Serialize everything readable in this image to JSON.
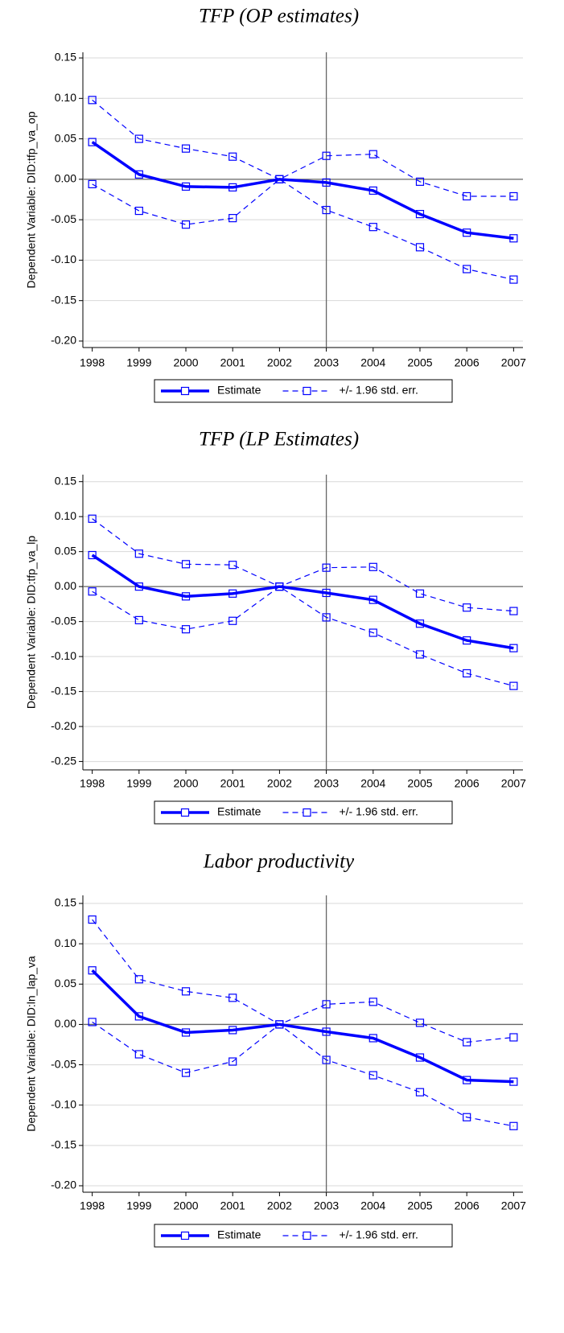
{
  "chart_data": [
    {
      "type": "line",
      "title": "TFP (OP estimates)",
      "y_label": "Dependent Variable: DID:tfp_va_op",
      "x": [
        1998,
        1999,
        2000,
        2001,
        2002,
        2003,
        2004,
        2005,
        2006,
        2007
      ],
      "xlim": [
        1997.8,
        2007.2
      ],
      "xticks": [
        1998,
        1999,
        2000,
        2001,
        2002,
        2003,
        2004,
        2005,
        2006,
        2007
      ],
      "ylim": [
        -0.208,
        0.157
      ],
      "yticks": [
        {
          "value": -0.2,
          "label": "-0.20"
        },
        {
          "value": -0.15,
          "label": "-0.15"
        },
        {
          "value": -0.1,
          "label": "-0.10"
        },
        {
          "value": -0.05,
          "label": "-0.05"
        },
        {
          "value": 0,
          "label": "0.00"
        },
        {
          "value": 0.05,
          "label": "0.05"
        },
        {
          "value": 0.1,
          "label": "0.10"
        },
        {
          "value": 0.15,
          "label": "0.15"
        }
      ],
      "grid": true,
      "hline": 0,
      "vline": 2003,
      "series": [
        {
          "name": "Estimate",
          "color": "#0000ff",
          "style": "solid",
          "values": [
            0.046,
            0.006,
            -0.009,
            -0.01,
            0.0,
            -0.004,
            -0.014,
            -0.043,
            -0.066,
            -0.073
          ]
        },
        {
          "name": "+/- 1.96 std. err.",
          "color": "#0000ff",
          "style": "dashed",
          "upper": [
            0.098,
            0.05,
            0.038,
            0.028,
            0.0,
            0.029,
            0.031,
            -0.003,
            -0.021,
            -0.021
          ],
          "lower": [
            -0.006,
            -0.039,
            -0.056,
            -0.048,
            0.0,
            -0.038,
            -0.059,
            -0.084,
            -0.111,
            -0.124
          ]
        }
      ]
    },
    {
      "type": "line",
      "title": "TFP (LP Estimates)",
      "y_label": "Dependent Variable: DID:tfp_va_lp",
      "x": [
        1998,
        1999,
        2000,
        2001,
        2002,
        2003,
        2004,
        2005,
        2006,
        2007
      ],
      "xlim": [
        1997.8,
        2007.2
      ],
      "xticks": [
        1998,
        1999,
        2000,
        2001,
        2002,
        2003,
        2004,
        2005,
        2006,
        2007
      ],
      "ylim": [
        -0.262,
        0.16
      ],
      "yticks": [
        {
          "value": -0.25,
          "label": "-0.25"
        },
        {
          "value": -0.2,
          "label": "-0.20"
        },
        {
          "value": -0.15,
          "label": "-0.15"
        },
        {
          "value": -0.1,
          "label": "-0.10"
        },
        {
          "value": -0.05,
          "label": "-0.05"
        },
        {
          "value": 0,
          "label": "0.00"
        },
        {
          "value": 0.05,
          "label": "0.05"
        },
        {
          "value": 0.1,
          "label": "0.10"
        },
        {
          "value": 0.15,
          "label": "0.15"
        }
      ],
      "grid": true,
      "hline": 0,
      "vline": 2003,
      "series": [
        {
          "name": "Estimate",
          "color": "#0000ff",
          "style": "solid",
          "values": [
            0.045,
            0.0,
            -0.014,
            -0.01,
            0.0,
            -0.009,
            -0.019,
            -0.053,
            -0.077,
            -0.088
          ]
        },
        {
          "name": "+/- 1.96 std. err.",
          "color": "#0000ff",
          "style": "dashed",
          "upper": [
            0.097,
            0.047,
            0.032,
            0.031,
            0.0,
            0.027,
            0.028,
            -0.01,
            -0.03,
            -0.035
          ],
          "lower": [
            -0.007,
            -0.048,
            -0.061,
            -0.049,
            0.0,
            -0.044,
            -0.066,
            -0.097,
            -0.124,
            -0.142
          ]
        }
      ]
    },
    {
      "type": "line",
      "title": "Labor productivity",
      "y_label": "Dependent Variable: DID:ln_lap_va",
      "x": [
        1998,
        1999,
        2000,
        2001,
        2002,
        2003,
        2004,
        2005,
        2006,
        2007
      ],
      "xlim": [
        1997.8,
        2007.2
      ],
      "xticks": [
        1998,
        1999,
        2000,
        2001,
        2002,
        2003,
        2004,
        2005,
        2006,
        2007
      ],
      "ylim": [
        -0.208,
        0.16
      ],
      "yticks": [
        {
          "value": -0.2,
          "label": "-0.20"
        },
        {
          "value": -0.15,
          "label": "-0.15"
        },
        {
          "value": -0.1,
          "label": "-0.10"
        },
        {
          "value": -0.05,
          "label": "-0.05"
        },
        {
          "value": 0,
          "label": "0.00"
        },
        {
          "value": 0.05,
          "label": "0.05"
        },
        {
          "value": 0.1,
          "label": "0.10"
        },
        {
          "value": 0.15,
          "label": "0.15"
        }
      ],
      "grid": true,
      "hline": 0,
      "vline": 2003,
      "series": [
        {
          "name": "Estimate",
          "color": "#0000ff",
          "style": "solid",
          "values": [
            0.067,
            0.01,
            -0.01,
            -0.007,
            0.0,
            -0.009,
            -0.017,
            -0.041,
            -0.069,
            -0.071
          ]
        },
        {
          "name": "+/- 1.96 std. err.",
          "color": "#0000ff",
          "style": "dashed",
          "upper": [
            0.13,
            0.056,
            0.041,
            0.033,
            0.0,
            0.025,
            0.028,
            0.002,
            -0.022,
            -0.016
          ],
          "lower": [
            0.003,
            -0.037,
            -0.06,
            -0.046,
            0.0,
            -0.044,
            -0.063,
            -0.084,
            -0.115,
            -0.126
          ]
        }
      ]
    }
  ]
}
